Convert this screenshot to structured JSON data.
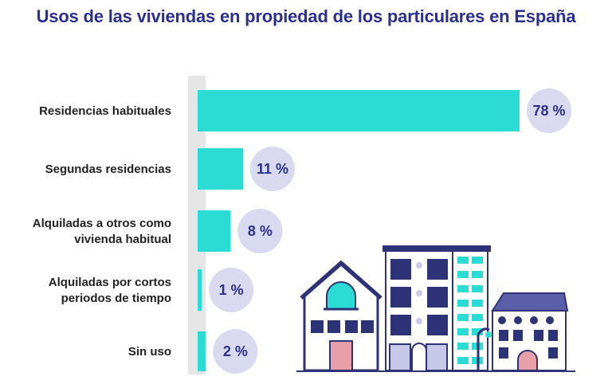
{
  "chart_data": {
    "type": "bar",
    "orientation": "horizontal",
    "title": "Usos de las viviendas en propiedad de los particulares en España",
    "categories": [
      [
        "Residencias habituales"
      ],
      [
        "Segundas residencias"
      ],
      [
        "Alquiladas a otros como",
        "vivienda habitual"
      ],
      [
        "Alquiladas por cortos",
        "periodos de tiempo"
      ],
      [
        "Sin uso"
      ]
    ],
    "values": [
      78,
      11,
      8,
      1,
      2
    ],
    "value_labels": [
      "78 %",
      "11 %",
      "8 %",
      "1 %",
      "2 %"
    ],
    "unit": "%",
    "xlim": [
      0,
      78
    ],
    "grid": false,
    "colors": {
      "bar": "#2adcd3",
      "axis_band": "#e6e6e6",
      "value_bubble": "#d9daf0",
      "value_text": "#2b2f8f",
      "title": "#2b2f8f",
      "label": "#222222"
    }
  },
  "illustration": {
    "name": "houses-illustration",
    "colors": {
      "outline": "#2e3277",
      "teal": "#2adcd3",
      "pink": "#e8a0a8",
      "window": "#2e3277"
    }
  }
}
